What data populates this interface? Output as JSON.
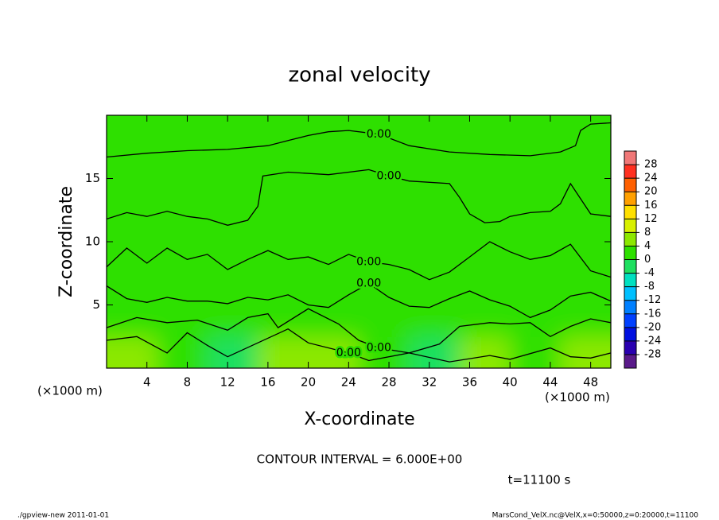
{
  "chart_data": {
    "type": "contour",
    "title": "zonal velocity",
    "x_label": "X-coordinate",
    "y_label": "Z-coordinate",
    "x_unit": "(×1000 m)",
    "note": "CONTOUR INTERVAL = 6.000E+00",
    "time_label": "t=11100 s",
    "footer_left": "./gpview-new   2011-01-01",
    "footer_right": "MarsCond_VelX.nc@VelX,x=0:50000,z=0:20000,t=11100",
    "xlim": [
      0,
      50
    ],
    "ylim": [
      0,
      20
    ],
    "xticks": [
      4,
      8,
      12,
      16,
      20,
      24,
      28,
      32,
      36,
      40,
      44,
      48
    ],
    "yticks": [
      5,
      10,
      15
    ],
    "clim": [
      -32,
      32
    ],
    "cticks": [
      -28,
      -24,
      -20,
      -16,
      -12,
      -8,
      -4,
      0,
      4,
      8,
      12,
      16,
      20,
      24,
      28
    ],
    "colors": [
      "#5a1a8a",
      "#2a00b0",
      "#0010e0",
      "#0040ff",
      "#0080ff",
      "#00c0ff",
      "#00e0c0",
      "#1ee060",
      "#2ee000",
      "#8ce800",
      "#d8f000",
      "#ffe000",
      "#ffa000",
      "#ff6000",
      "#ff3020",
      "#f07878"
    ],
    "field": {
      "x": [
        2.5,
        7.5,
        12.5,
        17.5,
        22.5,
        27.5,
        32.5,
        37.5,
        42.5,
        47.5
      ],
      "y": [
        1.25,
        3.75,
        6.25,
        8.75,
        11.25,
        13.75,
        16.25,
        18.75
      ],
      "values": [
        [
          5,
          2,
          -2,
          5,
          4,
          1,
          -1,
          5,
          3,
          5
        ],
        [
          3,
          2,
          1,
          3,
          2,
          2,
          2,
          3,
          2,
          2
        ],
        [
          1,
          1,
          1,
          1,
          1,
          1,
          1,
          1,
          1,
          1
        ],
        [
          1,
          1,
          1,
          1,
          1,
          1,
          1,
          1,
          1,
          1
        ],
        [
          1,
          1,
          1,
          1,
          1,
          1,
          1,
          1,
          1,
          1
        ],
        [
          1,
          1,
          1,
          1,
          1,
          1,
          1,
          1,
          1,
          1
        ],
        [
          1,
          1,
          1,
          1,
          1,
          1,
          1,
          1,
          1,
          1
        ],
        [
          1,
          1,
          1,
          1,
          1,
          1,
          1,
          1,
          1,
          1
        ]
      ]
    },
    "contour_label": {
      "value": 0,
      "label": "0.00"
    },
    "contours": [
      {
        "x": [
          0,
          4,
          8,
          12,
          16,
          18,
          20,
          22,
          24,
          27,
          30,
          34,
          38,
          42,
          45,
          46.5,
          47,
          48,
          50
        ],
        "y": [
          16.7,
          17,
          17.2,
          17.3,
          17.6,
          18,
          18.4,
          18.7,
          18.8,
          18.5,
          17.6,
          17.1,
          16.9,
          16.8,
          17.1,
          17.6,
          18.8,
          19.3,
          19.4
        ]
      },
      {
        "x": [
          0,
          2,
          4,
          6,
          8,
          10,
          12,
          14,
          15,
          15.5,
          18,
          22,
          26,
          28,
          30,
          34,
          35,
          36,
          37.5,
          39,
          40,
          42,
          44,
          45,
          46,
          48,
          50
        ],
        "y": [
          11.8,
          12.3,
          12,
          12.4,
          12,
          11.8,
          11.3,
          11.7,
          12.8,
          15.2,
          15.5,
          15.3,
          15.7,
          15.2,
          14.8,
          14.6,
          13.5,
          12.2,
          11.5,
          11.6,
          12,
          12.3,
          12.4,
          13,
          14.6,
          12.2,
          12
        ]
      },
      {
        "x": [
          0,
          2,
          4,
          6,
          8,
          10,
          12,
          14,
          16,
          18,
          20,
          22,
          24,
          26,
          28,
          30,
          32,
          34,
          36,
          38,
          40,
          42,
          44,
          46,
          48,
          50
        ],
        "y": [
          8,
          9.5,
          8.3,
          9.5,
          8.6,
          9,
          7.8,
          8.6,
          9.3,
          8.6,
          8.8,
          8.2,
          9,
          8.4,
          8.2,
          7.8,
          7,
          7.6,
          8.8,
          10,
          9.2,
          8.6,
          8.9,
          9.8,
          7.7,
          7.2
        ]
      },
      {
        "x": [
          0,
          2,
          4,
          6,
          8,
          10,
          12,
          14,
          16,
          18,
          20,
          22,
          24,
          26,
          28,
          30,
          32,
          34,
          36,
          38,
          40,
          42,
          44,
          46,
          48,
          50
        ],
        "y": [
          6.5,
          5.5,
          5.2,
          5.6,
          5.3,
          5.3,
          5.1,
          5.6,
          5.4,
          5.8,
          5,
          4.8,
          5.8,
          6.7,
          5.6,
          4.9,
          4.8,
          5.5,
          6.1,
          5.4,
          4.9,
          4,
          4.6,
          5.7,
          6,
          5.3
        ]
      },
      {
        "x": [
          0,
          3,
          6,
          9,
          12,
          14,
          16,
          17,
          20,
          23,
          25,
          27,
          30,
          33,
          35,
          38,
          40,
          42,
          44,
          46,
          48,
          50
        ],
        "y": [
          3.2,
          4,
          3.6,
          3.8,
          3,
          4,
          4.3,
          3.2,
          4.7,
          3.5,
          2.2,
          1.6,
          1.2,
          1.9,
          3.3,
          3.6,
          3.5,
          3.6,
          2.5,
          3.3,
          3.9,
          3.6
        ]
      },
      {
        "x": [
          0,
          3,
          6,
          8,
          10,
          12,
          15,
          18,
          20,
          24,
          26,
          30,
          34,
          38,
          40,
          44,
          46,
          48,
          50
        ],
        "y": [
          2.2,
          2.5,
          1.2,
          2.8,
          1.8,
          0.9,
          2,
          3.1,
          2,
          1.2,
          0.6,
          1.2,
          0.5,
          1,
          0.7,
          1.6,
          0.9,
          0.8,
          1.2
        ]
      }
    ]
  }
}
